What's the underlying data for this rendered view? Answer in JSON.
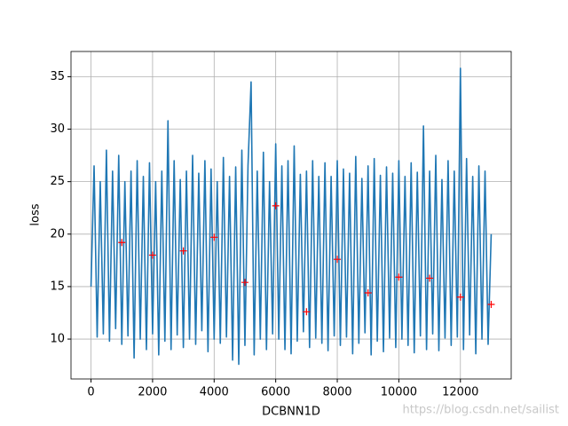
{
  "chart_data": {
    "type": "line",
    "xlabel": "DCBNN1D",
    "ylabel": "loss",
    "annotation": "https://blog.csdn.net/sailist",
    "xlim": [
      -650,
      13650
    ],
    "ylim": [
      6.2,
      37.4
    ],
    "xticks": [
      0,
      2000,
      4000,
      6000,
      8000,
      10000,
      12000
    ],
    "yticks": [
      10,
      15,
      20,
      25,
      30,
      35
    ],
    "grid": true,
    "series": [
      {
        "color": "#1f77b4",
        "marker": "none",
        "x": [
          0,
          100,
          200,
          300,
          400,
          500,
          600,
          700,
          800,
          900,
          1000,
          1100,
          1200,
          1300,
          1400,
          1500,
          1600,
          1700,
          1800,
          1900,
          2000,
          2100,
          2200,
          2300,
          2400,
          2500,
          2600,
          2700,
          2800,
          2900,
          3000,
          3100,
          3200,
          3300,
          3400,
          3500,
          3600,
          3700,
          3800,
          3900,
          4000,
          4100,
          4200,
          4300,
          4400,
          4500,
          4600,
          4700,
          4800,
          4900,
          5000,
          5100,
          5200,
          5300,
          5400,
          5500,
          5600,
          5700,
          5800,
          5900,
          6000,
          6100,
          6200,
          6300,
          6400,
          6500,
          6600,
          6700,
          6800,
          6900,
          7000,
          7100,
          7200,
          7300,
          7400,
          7500,
          7600,
          7700,
          7800,
          7900,
          8000,
          8100,
          8200,
          8300,
          8400,
          8500,
          8600,
          8700,
          8800,
          8900,
          9000,
          9100,
          9200,
          9300,
          9400,
          9500,
          9600,
          9700,
          9800,
          9900,
          10000,
          10100,
          10200,
          10300,
          10400,
          10500,
          10600,
          10700,
          10800,
          10900,
          11000,
          11100,
          11200,
          11300,
          11400,
          11500,
          11600,
          11700,
          11800,
          11900,
          12000,
          12100,
          12200,
          12300,
          12400,
          12500,
          12600,
          12700,
          12800,
          12900,
          13000
        ],
        "values": [
          15,
          26.5,
          10.2,
          25,
          10.5,
          28,
          9.8,
          26,
          11,
          27.5,
          9.5,
          25,
          10.3,
          26,
          8.2,
          27,
          10,
          25.5,
          9,
          26.8,
          10.5,
          25,
          8.5,
          26,
          9.8,
          30.8,
          9,
          27,
          10.4,
          25.2,
          9.2,
          26,
          10,
          27.5,
          9.5,
          25.8,
          10.8,
          27,
          8.8,
          26.2,
          10,
          25,
          9.6,
          27.3,
          10.2,
          25.5,
          8,
          26.4,
          7.6,
          28,
          9.4,
          26.5,
          34.5,
          8.5,
          26,
          10,
          27.8,
          9,
          25,
          10.5,
          28.6,
          10,
          26.5,
          9,
          27,
          8.6,
          28.4,
          9.8,
          25.7,
          10.7,
          26,
          9.2,
          27,
          10.1,
          25.5,
          9.6,
          26.8,
          8.9,
          25.5,
          10.3,
          27,
          9.4,
          26.2,
          10.2,
          25.8,
          8.6,
          27.4,
          9.6,
          25.3,
          10.6,
          26.5,
          8.5,
          27.2,
          9.8,
          25.6,
          8.8,
          26.4,
          10.1,
          25.8,
          9.2,
          27,
          10,
          25.5,
          9.4,
          26.8,
          8.7,
          25.9,
          10.3,
          30.3,
          9,
          26,
          10.5,
          27.5,
          8.9,
          25.2,
          10.1,
          27,
          9.4,
          26,
          10.2,
          35.8,
          9,
          27.2,
          10.4,
          25.5,
          8.6,
          26.5,
          10,
          26,
          9.5,
          20
        ]
      },
      {
        "color": "#ff0000",
        "marker": "+",
        "x": [
          1000,
          2000,
          3000,
          4000,
          5000,
          6000,
          7000,
          8000,
          9000,
          10000,
          11000,
          12000,
          13000
        ],
        "values": [
          19.2,
          18,
          18.4,
          19.7,
          15.4,
          22.7,
          12.6,
          17.6,
          14.4,
          15.9,
          15.8,
          14,
          13.3
        ]
      }
    ]
  }
}
